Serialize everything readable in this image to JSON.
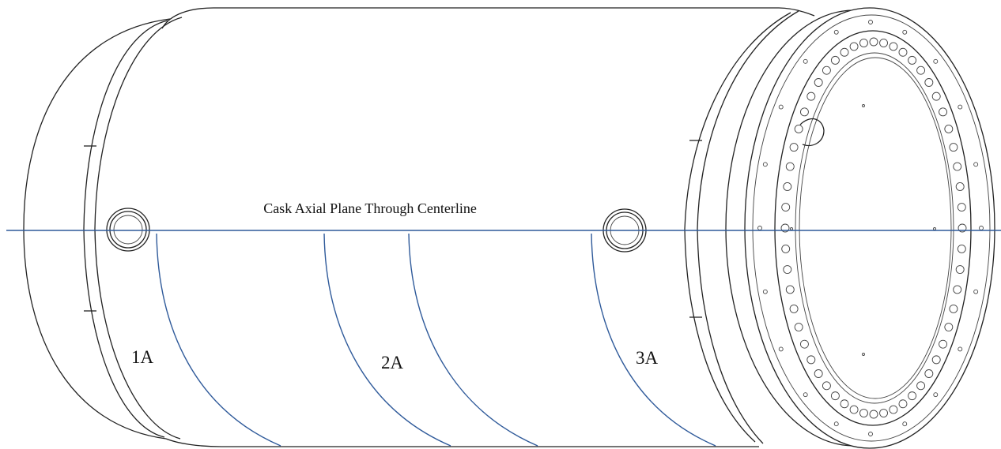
{
  "centerline": "Cask Axial Plane Through Centerline",
  "sections": [
    "1A",
    "2A",
    "3A"
  ]
}
